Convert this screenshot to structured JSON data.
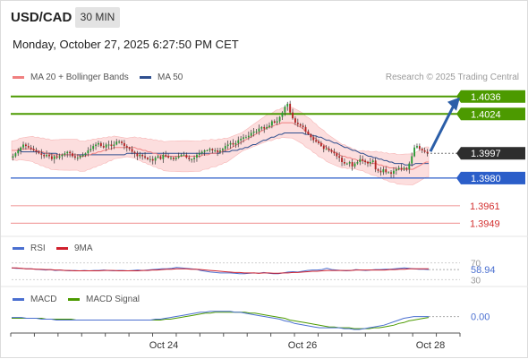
{
  "header": {
    "symbol": "USD/CAD",
    "timeframe": "30 MIN",
    "datetime": "Monday, October 27, 2025 6:27:50 PM CET"
  },
  "legend": {
    "ma20_label": "MA 20 + Bollinger Bands",
    "ma50_label": "MA 50",
    "credit": "Research © 2025 Trading Central",
    "rsi_label": "RSI",
    "rsi_ma_label": "9MA",
    "macd_label": "MACD",
    "macd_signal_label": "MACD Signal"
  },
  "colors": {
    "green_level": "#4c9a00",
    "blue_level": "#2b5ec9",
    "red_level": "#f2a3a3",
    "current_price": "#2e2e2e",
    "ma20": "#f08080",
    "ma50": "#2f4f8f",
    "bollinger_fill": "#fbd3d3",
    "candle_up": "#2a9a34",
    "candle_down": "#b22222",
    "rsi": "#4a6fd0",
    "rsi_ma": "#d0202d",
    "macd": "#4a6fd0",
    "macd_signal": "#4c9a00",
    "arrow": "#2b5ea8"
  },
  "chart_data": {
    "type": "candlestick",
    "symbol": "USD/CAD",
    "timeframe": "30 MIN",
    "price_levels": [
      {
        "price": 1.4036,
        "label": "1.4036",
        "style": "resistance-green"
      },
      {
        "price": 1.4024,
        "label": "1.4024",
        "style": "resistance-green"
      },
      {
        "price": 1.3997,
        "label": "1.3997",
        "style": "current"
      },
      {
        "price": 1.398,
        "label": "1.3980",
        "style": "pivot-blue"
      },
      {
        "price": 1.3961,
        "label": "1.3961",
        "style": "support-red"
      },
      {
        "price": 1.3949,
        "label": "1.3949",
        "style": "support-red"
      }
    ],
    "current_price": 1.3997,
    "x_ticks": [
      "Oct 24",
      "Oct 26",
      "Oct 28"
    ],
    "price_approx": [
      1.3995,
      1.3997,
      1.3999,
      1.4001,
      1.4003,
      1.4002,
      1.4001,
      1.4,
      1.3999,
      1.3998,
      1.3997,
      1.3996,
      1.3995,
      1.3996,
      1.3995,
      1.3993,
      1.3995,
      1.3994,
      1.3995,
      1.3996,
      1.3997,
      1.3998,
      1.3997,
      1.3995,
      1.3994,
      1.3994,
      1.3995,
      1.3996,
      1.3997,
      1.3999,
      1.4,
      1.4002,
      1.4003,
      1.4004,
      1.4002,
      1.4001,
      1.4003,
      1.4003,
      1.4002,
      1.4003,
      1.4005,
      1.4005,
      1.4004,
      1.4002,
      1.4001,
      1.4,
      1.3998,
      1.3997,
      1.3995,
      1.3996,
      1.3995,
      1.3994,
      1.3993,
      1.3993,
      1.3992,
      1.3994,
      1.3995,
      1.3993,
      1.3996,
      1.3995,
      1.3994,
      1.3994,
      1.3993,
      1.3994,
      1.3995,
      1.3996,
      1.3996,
      1.3994,
      1.3993,
      1.3993,
      1.3994,
      1.3996,
      1.3997,
      1.3998,
      1.3999,
      1.3999,
      1.4,
      1.3999,
      1.3999,
      1.3998,
      1.3999,
      1.4,
      1.4002,
      1.4003,
      1.4004,
      1.4003,
      1.4004,
      1.4006,
      1.4007,
      1.4008,
      1.4008,
      1.4009,
      1.4011,
      1.4012,
      1.4012,
      1.4014,
      1.4015,
      1.4014,
      1.4015,
      1.4016,
      1.4019,
      1.4018,
      1.4019,
      1.4022,
      1.4025,
      1.4029,
      1.4031,
      1.4025,
      1.4021,
      1.4018,
      1.4017,
      1.4016,
      1.4015,
      1.4012,
      1.401,
      1.4008,
      1.4006,
      1.4005,
      1.4004,
      1.4002,
      1.4,
      1.4,
      1.3999,
      1.3998,
      1.3997,
      1.3995,
      1.3994,
      1.3991,
      1.399,
      1.399,
      1.3991,
      1.3988,
      1.399,
      1.3991,
      1.3993,
      1.3992,
      1.3991,
      1.399,
      1.3991,
      1.3992,
      1.3986,
      1.3985,
      1.3984,
      1.3986,
      1.3984,
      1.3984,
      1.3983,
      1.3985,
      1.3986,
      1.3987,
      1.3986,
      1.3987,
      1.3986,
      1.399,
      1.3995,
      1.4001,
      1.4002,
      1.4,
      1.3999,
      1.3998,
      1.3997
    ],
    "ma20_approx": [
      1.3999,
      1.3999,
      1.3999,
      1.4,
      1.4,
      1.4,
      1.4,
      1.4,
      1.4,
      1.3999,
      1.3999,
      1.3998,
      1.3998,
      1.3997,
      1.3997,
      1.3996,
      1.3996,
      1.3996,
      1.3996,
      1.3996,
      1.3996,
      1.3996,
      1.3996,
      1.3996,
      1.3996,
      1.3996,
      1.3995,
      1.3995,
      1.3995,
      1.3996,
      1.3996,
      1.3997,
      1.3997,
      1.3998,
      1.3998,
      1.3999,
      1.3999,
      1.4,
      1.4,
      1.4001,
      1.4001,
      1.4001,
      1.4001,
      1.4001,
      1.4001,
      1.4001,
      1.4001,
      1.4001,
      1.4,
      1.4,
      1.3999,
      1.3999,
      1.3998,
      1.3998,
      1.3997,
      1.3997,
      1.3996,
      1.3996,
      1.3995,
      1.3995,
      1.3995,
      1.3995,
      1.3995,
      1.3995,
      1.3995,
      1.3995,
      1.3995,
      1.3995,
      1.3995,
      1.3995,
      1.3995,
      1.3995,
      1.3995,
      1.3996,
      1.3996,
      1.3996,
      1.3997,
      1.3997,
      1.3997,
      1.3998,
      1.3998,
      1.3999,
      1.3999,
      1.4,
      1.4001,
      1.4002,
      1.4003,
      1.4004,
      1.4005,
      1.4006,
      1.4007,
      1.4008,
      1.4009,
      1.401,
      1.4011,
      1.4012,
      1.4013,
      1.4014,
      1.4015,
      1.4015,
      1.4016,
      1.4017,
      1.4017,
      1.4018,
      1.4018,
      1.4018,
      1.4018,
      1.4018,
      1.4017,
      1.4016,
      1.4015,
      1.4014,
      1.4012,
      1.4011,
      1.401,
      1.4008,
      1.4007,
      1.4005,
      1.4004,
      1.4003,
      1.4001,
      1.4,
      1.3999,
      1.3998,
      1.3997,
      1.3996,
      1.3995,
      1.3995,
      1.3994,
      1.3994,
      1.3993,
      1.3993,
      1.3992,
      1.3992,
      1.3992,
      1.3991,
      1.3991,
      1.399,
      1.399,
      1.399,
      1.3989,
      1.3989,
      1.3988,
      1.3988,
      1.3987,
      1.3987,
      1.3987,
      1.3986,
      1.3986,
      1.3986,
      1.3986,
      1.3986,
      1.3986,
      1.3986,
      1.3987,
      1.3988,
      1.3989,
      1.399,
      1.3991,
      1.3991
    ],
    "ma50_approx": [
      1.3999,
      1.3999,
      1.3999,
      1.3999,
      1.3998,
      1.3998,
      1.3998,
      1.3998,
      1.3998,
      1.3998,
      1.3998,
      1.3998,
      1.3997,
      1.3997,
      1.3997,
      1.3997,
      1.3997,
      1.3997,
      1.3996,
      1.3996,
      1.3996,
      1.3996,
      1.3996,
      1.3996,
      1.3996,
      1.3996,
      1.3996,
      1.3996,
      1.3996,
      1.3996,
      1.3996,
      1.3996,
      1.3996,
      1.3996,
      1.3996,
      1.3996,
      1.3996,
      1.3996,
      1.3996,
      1.3996,
      1.3996,
      1.3996,
      1.3996,
      1.3996,
      1.3997,
      1.3997,
      1.3997,
      1.3997,
      1.3997,
      1.3997,
      1.3997,
      1.3997,
      1.3997,
      1.3997,
      1.3997,
      1.3997,
      1.3997,
      1.3997,
      1.3997,
      1.3997,
      1.3997,
      1.3997,
      1.3997,
      1.3997,
      1.3997,
      1.3997,
      1.3997,
      1.3997,
      1.3997,
      1.3997,
      1.3997,
      1.3997,
      1.3997,
      1.3997,
      1.3997,
      1.3997,
      1.3997,
      1.3997,
      1.3997,
      1.3997,
      1.3998,
      1.3998,
      1.3998,
      1.3998,
      1.3999,
      1.3999,
      1.3999,
      1.4,
      1.4,
      1.4001,
      1.4001,
      1.4002,
      1.4003,
      1.4003,
      1.4004,
      1.4005,
      1.4006,
      1.4006,
      1.4007,
      1.4008,
      1.4008,
      1.4009,
      1.401,
      1.401,
      1.4011,
      1.4011,
      1.4011,
      1.4011,
      1.4011,
      1.4011,
      1.4011,
      1.4011,
      1.401,
      1.401,
      1.401,
      1.4009,
      1.4009,
      1.4008,
      1.4008,
      1.4007,
      1.4006,
      1.4006,
      1.4005,
      1.4004,
      1.4004,
      1.4003,
      1.4002,
      1.4001,
      1.4001,
      1.4,
      1.3999,
      1.3999,
      1.3998,
      1.3997,
      1.3997,
      1.3996,
      1.3995,
      1.3995,
      1.3994,
      1.3994,
      1.3993,
      1.3993,
      1.3992,
      1.3992,
      1.3991,
      1.3991,
      1.399,
      1.399,
      1.399,
      1.399,
      1.3989,
      1.3989,
      1.3989,
      1.3989,
      1.399,
      1.399,
      1.399,
      1.399,
      1.399,
      1.399
    ],
    "ylim": [
      1.394,
      1.4042
    ],
    "rsi": {
      "levels": [
        "70",
        "30"
      ],
      "value_label": "58.94",
      "values_approx": [
        58,
        57,
        57,
        56,
        56,
        55,
        54,
        53,
        54,
        52,
        53,
        52,
        51,
        52,
        51,
        52,
        51,
        52,
        52,
        53,
        52,
        51,
        52,
        52,
        51,
        52,
        53,
        52,
        53,
        54,
        55,
        56,
        56,
        57,
        59,
        58,
        57,
        56,
        55,
        52,
        50,
        48,
        47,
        46,
        46,
        46,
        45,
        44,
        44,
        45,
        46,
        45,
        47,
        45,
        44,
        44,
        46,
        48,
        49,
        48,
        50,
        52,
        53,
        53,
        54,
        57,
        54,
        53,
        52,
        51,
        52,
        54,
        53,
        52,
        53,
        54,
        54,
        55,
        55,
        56,
        57,
        58,
        57,
        56,
        55,
        55,
        54
      ],
      "ma_values_approx": [
        58,
        58,
        57,
        56,
        56,
        55,
        55,
        54,
        54,
        53,
        53,
        52,
        52,
        51,
        51,
        51,
        51,
        51,
        51,
        52,
        52,
        52,
        51,
        51,
        51,
        51,
        51,
        52,
        52,
        53,
        53,
        54,
        55,
        55,
        56,
        56,
        56,
        55,
        55,
        54,
        53,
        52,
        51,
        50,
        49,
        48,
        47,
        47,
        46,
        46,
        46,
        45,
        46,
        46,
        45,
        45,
        46,
        46,
        47,
        47,
        48,
        49,
        50,
        50,
        51,
        52,
        52,
        52,
        52,
        52,
        52,
        53,
        53,
        53,
        53,
        53,
        53,
        53,
        54,
        54,
        55,
        55,
        56,
        56,
        56,
        56,
        56
      ]
    },
    "macd": {
      "zero_label": "0.00",
      "values_approx": [
        0.0002,
        0.0002,
        0.0002,
        0.0001,
        0.0001,
        0.0001,
        0.0,
        0.0,
        0.0,
        -0.0001,
        -0.0001,
        -0.0001,
        -0.0001,
        -0.0001,
        -0.0001,
        -0.0001,
        -0.0001,
        -0.0001,
        -0.0001,
        -0.0001,
        -0.0001,
        -0.0001,
        -0.0001,
        -0.0001,
        -0.0001,
        -0.0001,
        -0.0001,
        -0.0001,
        -0.0001,
        -0.0,
        0.0,
        0.0001,
        0.0002,
        0.0003,
        0.0004,
        0.0005,
        0.0006,
        0.0007,
        0.0008,
        0.0008,
        0.0009,
        0.0009,
        0.0009,
        0.0009,
        0.0009,
        0.0008,
        0.0008,
        0.0007,
        0.0006,
        0.0005,
        0.0004,
        0.0003,
        0.0002,
        0.0001,
        -0.0,
        -0.0002,
        -0.0003,
        -0.0005,
        -0.0006,
        -0.0007,
        -0.0008,
        -0.0009,
        -0.001,
        -0.001,
        -0.001,
        -0.001,
        -0.001,
        -0.0011,
        -0.0011,
        -0.0012,
        -0.0012,
        -0.0011,
        -0.001,
        -0.0009,
        -0.0008,
        -0.0007,
        -0.0005,
        -0.0003,
        -0.0001,
        0.0001,
        0.0002,
        0.0003,
        0.0003,
        0.0003,
        0.0003
      ],
      "signal_approx": [
        0.0001,
        0.0001,
        0.0001,
        0.0001,
        0.0001,
        0.0001,
        0.0001,
        0.0,
        0.0,
        0.0,
        -0.0,
        -0.0,
        -0.0,
        -0.0001,
        -0.0001,
        -0.0001,
        -0.0001,
        -0.0001,
        -0.0001,
        -0.0001,
        -0.0001,
        -0.0001,
        -0.0001,
        -0.0001,
        -0.0001,
        -0.0001,
        -0.0001,
        -0.0001,
        -0.0001,
        -0.0001,
        -0.0001,
        -0.0,
        0.0,
        0.0001,
        0.0002,
        0.0003,
        0.0004,
        0.0005,
        0.0006,
        0.0007,
        0.0007,
        0.0008,
        0.0008,
        0.0008,
        0.0008,
        0.0008,
        0.0008,
        0.0008,
        0.0007,
        0.0007,
        0.0006,
        0.0005,
        0.0004,
        0.0003,
        0.0002,
        0.0001,
        -0.0001,
        -0.0002,
        -0.0003,
        -0.0004,
        -0.0005,
        -0.0006,
        -0.0007,
        -0.0008,
        -0.0009,
        -0.0009,
        -0.001,
        -0.001,
        -0.001,
        -0.0011,
        -0.0011,
        -0.0011,
        -0.0011,
        -0.001,
        -0.001,
        -0.0009,
        -0.0008,
        -0.0007,
        -0.0005,
        -0.0004,
        -0.0002,
        -0.0001,
        0.0,
        0.0001,
        0.0002
      ]
    }
  }
}
